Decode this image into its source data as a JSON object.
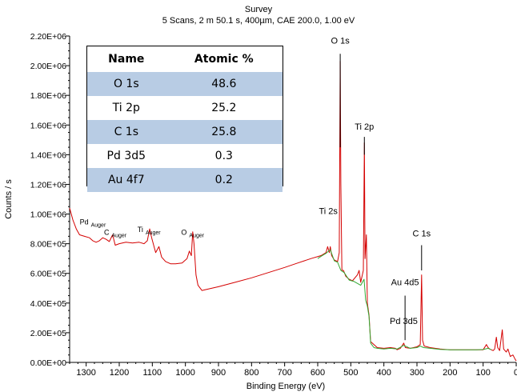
{
  "chart_data": {
    "type": "line",
    "title": "Survey",
    "subtitle": "5 Scans,  2 m 50.1 s,  400µm,  CAE 200.0,  1.00 eV",
    "xlabel": "Binding Energy (eV)",
    "ylabel": "Counts / s",
    "xlim": [
      1350,
      0
    ],
    "ylim": [
      0,
      2200000
    ],
    "x_ticks": [
      1300,
      1200,
      1100,
      1000,
      900,
      800,
      700,
      600,
      500,
      400,
      300,
      200,
      100,
      0
    ],
    "x_tick_labels": [
      "1300",
      "1200",
      "1100",
      "1000",
      "900",
      "800",
      "700",
      "600",
      "500",
      "400",
      "300",
      "200",
      "100",
      "0"
    ],
    "y_ticks": [
      0,
      200000,
      400000,
      600000,
      800000,
      1000000,
      1200000,
      1400000,
      1600000,
      1800000,
      2000000,
      2200000
    ],
    "y_tick_labels": [
      "0.00E+00",
      "2.00E+05",
      "4.00E+05",
      "6.00E+05",
      "8.00E+05",
      "1.00E+06",
      "1.20E+06",
      "1.40E+06",
      "1.60E+06",
      "1.80E+06",
      "2.00E+06",
      "2.20E+06"
    ],
    "grid": false,
    "series": [
      {
        "color": "#d40000",
        "points": [
          [
            1350,
            1040000
          ],
          [
            1340,
            960000
          ],
          [
            1330,
            900000
          ],
          [
            1320,
            860000
          ],
          [
            1305,
            850000
          ],
          [
            1290,
            840000
          ],
          [
            1280,
            820000
          ],
          [
            1270,
            810000
          ],
          [
            1260,
            820000
          ],
          [
            1250,
            840000
          ],
          [
            1240,
            830000
          ],
          [
            1230,
            815000
          ],
          [
            1220,
            860000
          ],
          [
            1212,
            790000
          ],
          [
            1200,
            800000
          ],
          [
            1180,
            810000
          ],
          [
            1160,
            805000
          ],
          [
            1140,
            810000
          ],
          [
            1125,
            800000
          ],
          [
            1115,
            820000
          ],
          [
            1108,
            900000
          ],
          [
            1102,
            840000
          ],
          [
            1090,
            740000
          ],
          [
            1080,
            780000
          ],
          [
            1072,
            710000
          ],
          [
            1060,
            680000
          ],
          [
            1045,
            665000
          ],
          [
            1030,
            665000
          ],
          [
            1010,
            670000
          ],
          [
            995,
            700000
          ],
          [
            988,
            750000
          ],
          [
            982,
            720000
          ],
          [
            978,
            880000
          ],
          [
            974,
            800000
          ],
          [
            968,
            590000
          ],
          [
            962,
            520000
          ],
          [
            950,
            485000
          ],
          [
            940,
            490000
          ],
          [
            900,
            510000
          ],
          [
            850,
            540000
          ],
          [
            800,
            570000
          ],
          [
            750,
            605000
          ],
          [
            700,
            640000
          ],
          [
            660,
            670000
          ],
          [
            620,
            700000
          ],
          [
            590,
            720000
          ],
          [
            575,
            740000
          ],
          [
            570,
            780000
          ],
          [
            565,
            740000
          ],
          [
            562,
            780000
          ],
          [
            558,
            720000
          ],
          [
            550,
            690000
          ],
          [
            540,
            680000
          ],
          [
            535,
            740000
          ],
          [
            532,
            2030000
          ],
          [
            530,
            1200000
          ],
          [
            527,
            620000
          ],
          [
            522,
            620000
          ],
          [
            515,
            580000
          ],
          [
            505,
            560000
          ],
          [
            495,
            550000
          ],
          [
            480,
            590000
          ],
          [
            475,
            620000
          ],
          [
            470,
            540000
          ],
          [
            462,
            620000
          ],
          [
            459,
            1480000
          ],
          [
            457,
            700000
          ],
          [
            453,
            860000
          ],
          [
            450,
            400000
          ],
          [
            445,
            320000
          ],
          [
            440,
            140000
          ],
          [
            420,
            100000
          ],
          [
            400,
            95000
          ],
          [
            380,
            100000
          ],
          [
            365,
            95000
          ],
          [
            360,
            85000
          ],
          [
            350,
            95000
          ],
          [
            340,
            130000
          ],
          [
            335,
            100000
          ],
          [
            320,
            95000
          ],
          [
            300,
            105000
          ],
          [
            290,
            120000
          ],
          [
            286,
            590000
          ],
          [
            283,
            150000
          ],
          [
            278,
            110000
          ],
          [
            260,
            100000
          ],
          [
            230,
            90000
          ],
          [
            200,
            85000
          ],
          [
            150,
            85000
          ],
          [
            100,
            85000
          ],
          [
            90,
            120000
          ],
          [
            85,
            100000
          ],
          [
            80,
            90000
          ],
          [
            70,
            80000
          ],
          [
            65,
            90000
          ],
          [
            60,
            170000
          ],
          [
            56,
            100000
          ],
          [
            50,
            80000
          ],
          [
            42,
            220000
          ],
          [
            38,
            90000
          ],
          [
            30,
            70000
          ],
          [
            25,
            90000
          ],
          [
            18,
            40000
          ],
          [
            10,
            50000
          ],
          [
            3,
            20000
          ],
          [
            0,
            10000
          ]
        ]
      },
      {
        "color": "#33aa33",
        "points": [
          [
            600,
            700000
          ],
          [
            590,
            715000
          ],
          [
            575,
            735000
          ],
          [
            562,
            760000
          ],
          [
            550,
            685000
          ],
          [
            540,
            675000
          ],
          [
            530,
            620000
          ],
          [
            520,
            605000
          ],
          [
            505,
            555000
          ],
          [
            490,
            545000
          ],
          [
            470,
            520000
          ],
          [
            460,
            560000
          ],
          [
            455,
            420000
          ],
          [
            450,
            380000
          ],
          [
            445,
            310000
          ],
          [
            440,
            130000
          ],
          [
            430,
            100000
          ],
          [
            420,
            95000
          ],
          [
            400,
            90000
          ],
          [
            380,
            95000
          ],
          [
            360,
            90000
          ],
          [
            340,
            115000
          ],
          [
            320,
            95000
          ],
          [
            300,
            100000
          ],
          [
            290,
            110000
          ],
          [
            280,
            100000
          ],
          [
            260,
            95000
          ],
          [
            230,
            88000
          ],
          [
            200,
            85000
          ],
          [
            150,
            85000
          ],
          [
            120,
            85000
          ],
          [
            100,
            87000
          ],
          [
            85,
            95000
          ],
          [
            75,
            85000
          ]
        ]
      }
    ],
    "annotations": [
      {
        "text": "O 1s",
        "x": 532,
        "y": 2150000
      },
      {
        "text": "Ti 2p",
        "x": 459,
        "y": 1570000
      },
      {
        "text": "Ti 2s",
        "x": 568,
        "y": 1000000
      },
      {
        "text": "C 1s",
        "x": 286,
        "y": 850000
      },
      {
        "text": "Au 4d5",
        "x": 336,
        "y": 520000
      },
      {
        "text": "Pd 3d5",
        "x": 340,
        "y": 260000
      },
      {
        "text": "Pd",
        "sub": "Auger",
        "x": 1280,
        "y": 930000
      },
      {
        "text": "C",
        "sub": "Auger",
        "x": 1212,
        "y": 860000
      },
      {
        "text": "Ti",
        "sub": "Auger",
        "x": 1110,
        "y": 880000
      },
      {
        "text": "O",
        "sub": "Auger",
        "x": 978,
        "y": 860000
      }
    ],
    "leader_lines": [
      {
        "x": 532,
        "y1": 2080000,
        "y2": 1450000
      },
      {
        "x": 459,
        "y1": 1520000,
        "y2": 1400000
      },
      {
        "x": 286,
        "y1": 790000,
        "y2": 620000
      },
      {
        "x": 336,
        "y1": 450000,
        "y2": 150000
      }
    ],
    "table": {
      "headers": [
        "Name",
        "Atomic %"
      ],
      "rows": [
        {
          "name": "O 1s",
          "value": "48.6",
          "shade": true
        },
        {
          "name": "Ti 2p",
          "value": "25.2",
          "shade": false
        },
        {
          "name": "C 1s",
          "value": "25.8",
          "shade": true
        },
        {
          "name": "Pd 3d5",
          "value": "0.3",
          "shade": false
        },
        {
          "name": "Au 4f7",
          "value": "0.2",
          "shade": true
        }
      ]
    }
  }
}
